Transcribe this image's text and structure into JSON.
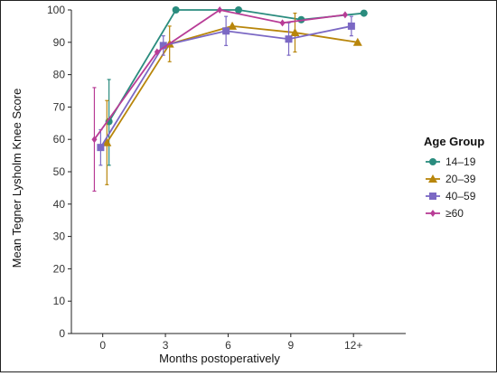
{
  "chart_data": {
    "type": "line",
    "title": "",
    "xlabel": "Months postoperatively",
    "ylabel": "Mean Tegner Lysholm Knee Score",
    "categories": [
      "0",
      "3",
      "6",
      "9",
      "12+"
    ],
    "ylim": [
      0,
      100
    ],
    "yticks": [
      0,
      10,
      20,
      30,
      40,
      50,
      60,
      70,
      80,
      90,
      100
    ],
    "grid": false,
    "legend": {
      "title": "Age Group",
      "placement": "right"
    },
    "series": [
      {
        "name": "14–19",
        "color": "#2a8c7e",
        "marker": "circle",
        "points": [
          {
            "x": 0.3,
            "y": 65.5,
            "lo": 52,
            "hi": 78.5
          },
          {
            "x": 3.5,
            "y": 100,
            "lo": 100,
            "hi": 100
          },
          {
            "x": 6.5,
            "y": 100,
            "lo": 100,
            "hi": 100
          },
          {
            "x": 9.5,
            "y": 97,
            "lo": 97,
            "hi": 97
          },
          {
            "x": 12.5,
            "y": 99,
            "lo": 99,
            "hi": 99
          }
        ]
      },
      {
        "name": "20–39",
        "color": "#b8860b",
        "marker": "triangle",
        "points": [
          {
            "x": 0.2,
            "y": 59,
            "lo": 46,
            "hi": 72
          },
          {
            "x": 3.2,
            "y": 89.5,
            "lo": 84,
            "hi": 95
          },
          {
            "x": 6.2,
            "y": 95,
            "lo": 95,
            "hi": 95
          },
          {
            "x": 9.2,
            "y": 93,
            "lo": 87,
            "hi": 99
          },
          {
            "x": 12.2,
            "y": 90,
            "lo": 90,
            "hi": 90
          }
        ]
      },
      {
        "name": "40–59",
        "color": "#7b68c4",
        "marker": "square",
        "points": [
          {
            "x": -0.1,
            "y": 57.5,
            "lo": 52,
            "hi": 63
          },
          {
            "x": 2.9,
            "y": 89,
            "lo": 86,
            "hi": 92
          },
          {
            "x": 5.9,
            "y": 93.5,
            "lo": 89,
            "hi": 98
          },
          {
            "x": 8.9,
            "y": 91,
            "lo": 86,
            "hi": 96
          },
          {
            "x": 11.9,
            "y": 95,
            "lo": 92,
            "hi": 98
          }
        ]
      },
      {
        "name": "≥60",
        "color": "#b83c96",
        "marker": "diamond",
        "points": [
          {
            "x": -0.4,
            "y": 60,
            "lo": 44,
            "hi": 76
          },
          {
            "x": 2.6,
            "y": 87,
            "lo": 87,
            "hi": 87
          },
          {
            "x": 5.6,
            "y": 100,
            "lo": 100,
            "hi": 100
          },
          {
            "x": 8.6,
            "y": 96,
            "lo": 96,
            "hi": 96
          },
          {
            "x": 11.6,
            "y": 98.5,
            "lo": 98.5,
            "hi": 98.5
          }
        ]
      }
    ]
  }
}
